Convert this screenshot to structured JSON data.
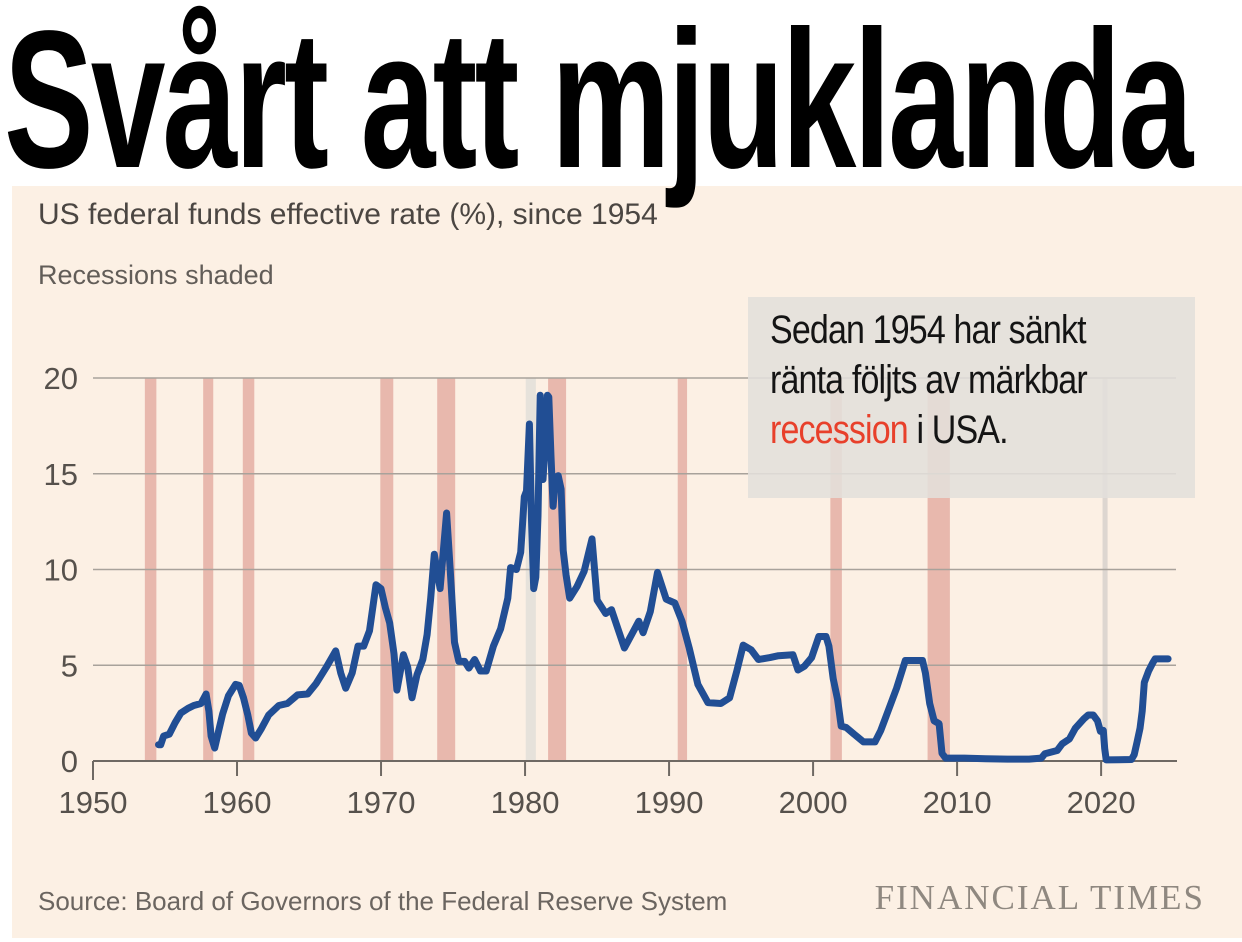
{
  "headline": "Svårt att mjuklanda",
  "chart": {
    "title": "US federal funds effective rate (%), since 1954",
    "note": "Recessions shaded",
    "source": "Source: Board of Governors of the Federal Reserve System",
    "logo": "FINANCIAL TIMES"
  },
  "annotation": {
    "line1": "Sedan 1954 har sänkt",
    "line2": "ränta följts av märkbar",
    "highlight": "recession",
    "rest": " i USA."
  },
  "colors": {
    "background": "#fcf0e4",
    "line": "#214e94",
    "recession_pink": "#e8b8ad",
    "recession_gray": "#e6e2db",
    "recession_pale": "#ddd6d0",
    "grid": "#a8a29b",
    "axis": "#6f6963",
    "highlight_red": "#e8402b"
  },
  "chart_data": {
    "type": "line",
    "title": "US federal funds effective rate (%), since 1954",
    "subtitle": "Recessions shaded",
    "xlabel": "",
    "ylabel": "",
    "xlim": [
      1950,
      2025.2
    ],
    "ylim": [
      0,
      20
    ],
    "x_ticks": [
      1950,
      1960,
      1970,
      1980,
      1990,
      2000,
      2010,
      2020
    ],
    "y_ticks": [
      0,
      5,
      10,
      15,
      20
    ],
    "grid": true,
    "legend": "none",
    "recessions": [
      {
        "start": 1953.6,
        "end": 1954.4,
        "shade": "pink"
      },
      {
        "start": 1957.65,
        "end": 1958.35,
        "shade": "pink"
      },
      {
        "start": 1960.4,
        "end": 1961.2,
        "shade": "pink"
      },
      {
        "start": 1969.95,
        "end": 1970.85,
        "shade": "pink"
      },
      {
        "start": 1973.9,
        "end": 1975.15,
        "shade": "pink"
      },
      {
        "start": 1980.05,
        "end": 1980.75,
        "shade": "gray"
      },
      {
        "start": 1981.6,
        "end": 1982.85,
        "shade": "pink"
      },
      {
        "start": 1990.6,
        "end": 1991.25,
        "shade": "pink"
      },
      {
        "start": 2001.2,
        "end": 2002.0,
        "shade": "pink"
      },
      {
        "start": 2007.95,
        "end": 2009.5,
        "shade": "pink"
      },
      {
        "start": 2020.1,
        "end": 2020.45,
        "shade": "pale"
      }
    ],
    "series": [
      {
        "name": "US federal funds effective rate (%)",
        "points": [
          [
            1954.55,
            0.85
          ],
          [
            1954.7,
            0.85
          ],
          [
            1954.9,
            1.3
          ],
          [
            1955.3,
            1.4
          ],
          [
            1955.7,
            2.0
          ],
          [
            1956.1,
            2.5
          ],
          [
            1956.6,
            2.75
          ],
          [
            1957.0,
            2.9
          ],
          [
            1957.5,
            3.0
          ],
          [
            1957.85,
            3.5
          ],
          [
            1958.05,
            2.6
          ],
          [
            1958.2,
            1.3
          ],
          [
            1958.45,
            0.68
          ],
          [
            1958.7,
            1.5
          ],
          [
            1959.0,
            2.45
          ],
          [
            1959.4,
            3.4
          ],
          [
            1959.9,
            4.0
          ],
          [
            1960.15,
            3.95
          ],
          [
            1960.45,
            3.3
          ],
          [
            1960.75,
            2.4
          ],
          [
            1961.0,
            1.45
          ],
          [
            1961.3,
            1.2
          ],
          [
            1961.7,
            1.7
          ],
          [
            1962.2,
            2.4
          ],
          [
            1962.9,
            2.9
          ],
          [
            1963.5,
            3.0
          ],
          [
            1964.2,
            3.45
          ],
          [
            1964.9,
            3.5
          ],
          [
            1965.5,
            4.05
          ],
          [
            1966.2,
            4.9
          ],
          [
            1966.85,
            5.75
          ],
          [
            1967.2,
            4.6
          ],
          [
            1967.55,
            3.8
          ],
          [
            1968.0,
            4.6
          ],
          [
            1968.4,
            6.0
          ],
          [
            1968.8,
            6.0
          ],
          [
            1969.2,
            6.8
          ],
          [
            1969.65,
            9.2
          ],
          [
            1970.0,
            9.0
          ],
          [
            1970.3,
            8.0
          ],
          [
            1970.6,
            7.2
          ],
          [
            1970.9,
            5.6
          ],
          [
            1971.1,
            3.7
          ],
          [
            1971.55,
            5.55
          ],
          [
            1971.85,
            4.9
          ],
          [
            1972.15,
            3.3
          ],
          [
            1972.5,
            4.5
          ],
          [
            1972.9,
            5.3
          ],
          [
            1973.2,
            6.6
          ],
          [
            1973.45,
            8.5
          ],
          [
            1973.7,
            10.8
          ],
          [
            1974.1,
            9.0
          ],
          [
            1974.55,
            12.95
          ],
          [
            1974.8,
            10.0
          ],
          [
            1975.1,
            6.2
          ],
          [
            1975.4,
            5.2
          ],
          [
            1975.8,
            5.2
          ],
          [
            1976.1,
            4.85
          ],
          [
            1976.5,
            5.3
          ],
          [
            1976.9,
            4.7
          ],
          [
            1977.3,
            4.7
          ],
          [
            1977.8,
            6.0
          ],
          [
            1978.3,
            6.9
          ],
          [
            1978.8,
            8.5
          ],
          [
            1979.0,
            10.1
          ],
          [
            1979.4,
            10.0
          ],
          [
            1979.7,
            10.9
          ],
          [
            1979.95,
            13.8
          ],
          [
            1980.1,
            14.1
          ],
          [
            1980.3,
            17.6
          ],
          [
            1980.45,
            12.6
          ],
          [
            1980.6,
            9.0
          ],
          [
            1980.75,
            9.6
          ],
          [
            1980.9,
            12.8
          ],
          [
            1981.05,
            19.1
          ],
          [
            1981.15,
            16.0
          ],
          [
            1981.25,
            14.7
          ],
          [
            1981.4,
            16.6
          ],
          [
            1981.55,
            19.1
          ],
          [
            1981.65,
            19.0
          ],
          [
            1981.8,
            15.9
          ],
          [
            1981.95,
            13.3
          ],
          [
            1982.1,
            14.8
          ],
          [
            1982.3,
            14.9
          ],
          [
            1982.5,
            14.2
          ],
          [
            1982.65,
            11.0
          ],
          [
            1982.85,
            9.7
          ],
          [
            1983.1,
            8.5
          ],
          [
            1983.6,
            9.1
          ],
          [
            1984.1,
            9.9
          ],
          [
            1984.65,
            11.6
          ],
          [
            1985.0,
            8.4
          ],
          [
            1985.6,
            7.7
          ],
          [
            1986.0,
            7.9
          ],
          [
            1986.9,
            5.9
          ],
          [
            1987.4,
            6.6
          ],
          [
            1987.9,
            7.3
          ],
          [
            1988.2,
            6.7
          ],
          [
            1988.7,
            7.8
          ],
          [
            1989.2,
            9.85
          ],
          [
            1989.8,
            8.45
          ],
          [
            1990.4,
            8.25
          ],
          [
            1990.9,
            7.3
          ],
          [
            1991.4,
            5.9
          ],
          [
            1992.0,
            4.0
          ],
          [
            1992.7,
            3.05
          ],
          [
            1993.6,
            3.0
          ],
          [
            1994.2,
            3.3
          ],
          [
            1994.7,
            4.7
          ],
          [
            1995.15,
            6.05
          ],
          [
            1995.7,
            5.8
          ],
          [
            1996.2,
            5.3
          ],
          [
            1997.0,
            5.4
          ],
          [
            1997.6,
            5.5
          ],
          [
            1998.6,
            5.55
          ],
          [
            1998.95,
            4.75
          ],
          [
            1999.4,
            4.95
          ],
          [
            1999.9,
            5.4
          ],
          [
            2000.4,
            6.5
          ],
          [
            2000.9,
            6.5
          ],
          [
            2001.1,
            6.0
          ],
          [
            2001.4,
            4.3
          ],
          [
            2001.7,
            3.2
          ],
          [
            2001.95,
            1.82
          ],
          [
            2002.3,
            1.75
          ],
          [
            2002.85,
            1.4
          ],
          [
            2003.1,
            1.25
          ],
          [
            2003.5,
            1.0
          ],
          [
            2004.3,
            1.0
          ],
          [
            2004.7,
            1.6
          ],
          [
            2005.2,
            2.6
          ],
          [
            2005.8,
            3.8
          ],
          [
            2006.4,
            5.25
          ],
          [
            2007.6,
            5.25
          ],
          [
            2007.8,
            4.6
          ],
          [
            2008.1,
            3.0
          ],
          [
            2008.4,
            2.1
          ],
          [
            2008.75,
            1.95
          ],
          [
            2008.95,
            0.4
          ],
          [
            2009.2,
            0.15
          ],
          [
            2010.5,
            0.15
          ],
          [
            2012.0,
            0.12
          ],
          [
            2013.5,
            0.1
          ],
          [
            2015.0,
            0.1
          ],
          [
            2015.85,
            0.15
          ],
          [
            2016.1,
            0.38
          ],
          [
            2016.95,
            0.55
          ],
          [
            2017.3,
            0.9
          ],
          [
            2017.8,
            1.15
          ],
          [
            2018.2,
            1.7
          ],
          [
            2018.8,
            2.2
          ],
          [
            2019.1,
            2.4
          ],
          [
            2019.45,
            2.4
          ],
          [
            2019.75,
            2.1
          ],
          [
            2019.95,
            1.55
          ],
          [
            2020.15,
            1.6
          ],
          [
            2020.25,
            0.65
          ],
          [
            2020.35,
            0.06
          ],
          [
            2021.2,
            0.07
          ],
          [
            2022.1,
            0.08
          ],
          [
            2022.3,
            0.33
          ],
          [
            2022.5,
            1.0
          ],
          [
            2022.7,
            1.7
          ],
          [
            2022.85,
            2.6
          ],
          [
            2023.0,
            4.1
          ],
          [
            2023.3,
            4.7
          ],
          [
            2023.6,
            5.15
          ],
          [
            2023.75,
            5.33
          ],
          [
            2024.2,
            5.33
          ],
          [
            2024.65,
            5.33
          ]
        ]
      }
    ]
  }
}
